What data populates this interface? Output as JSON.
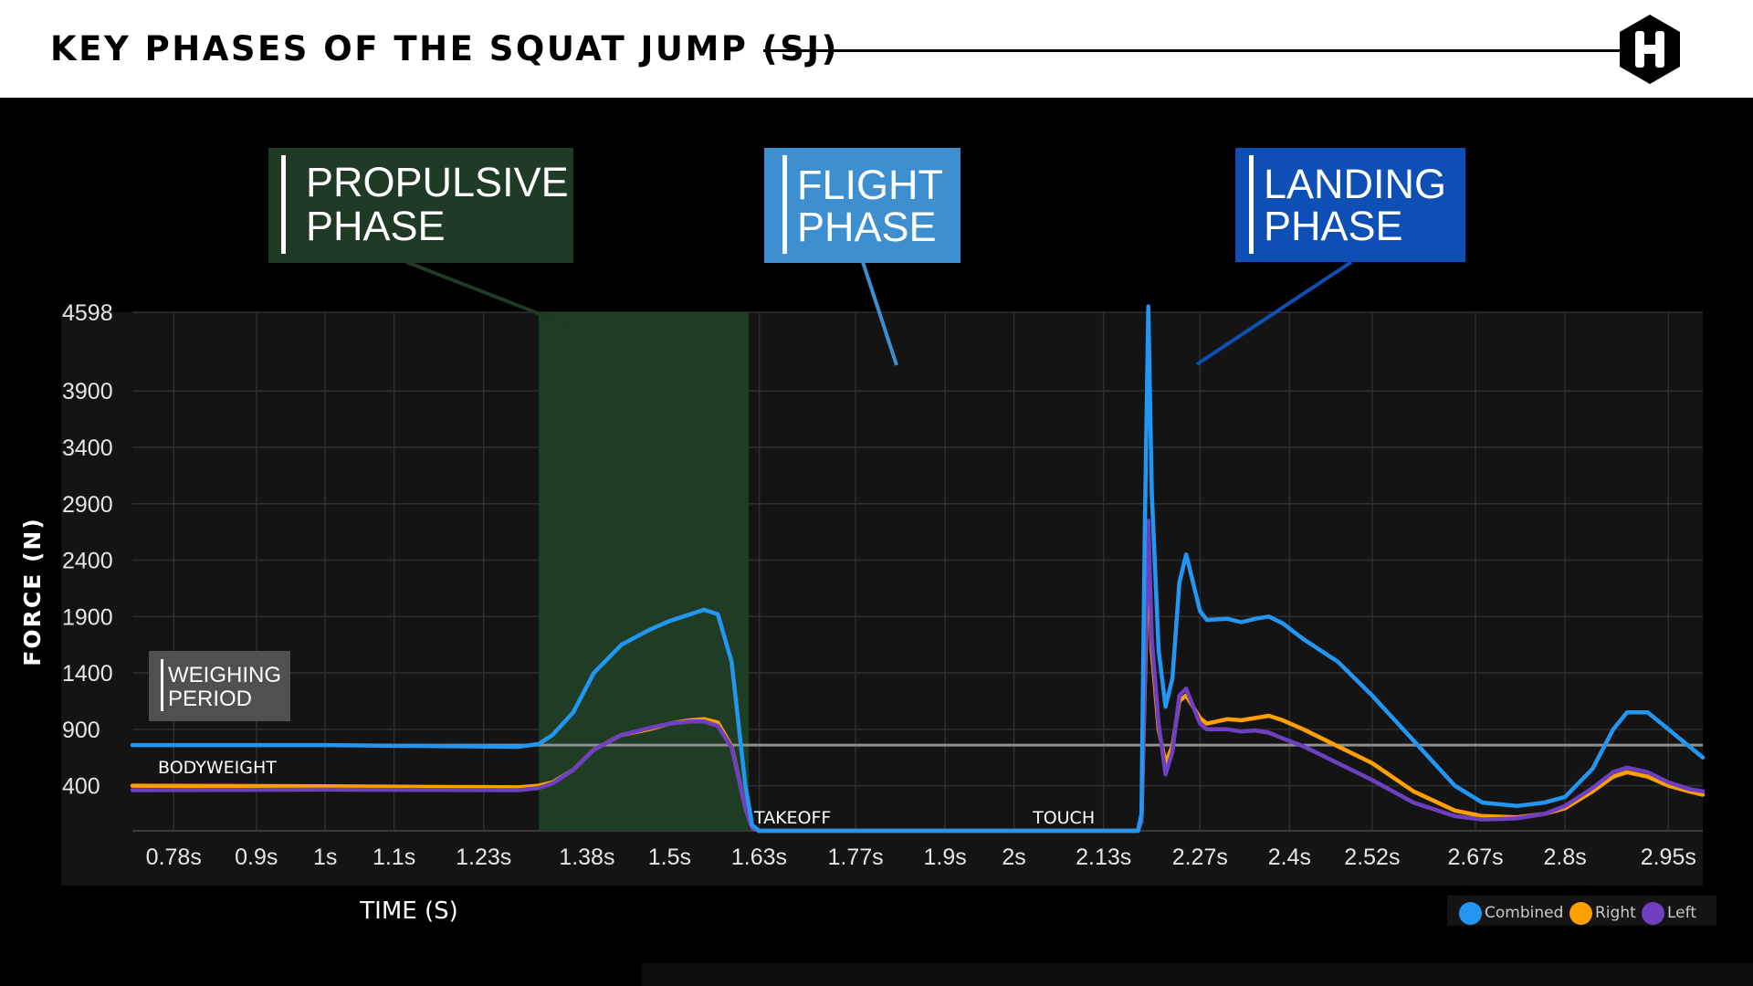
{
  "header": {
    "title": "KEY PHASES OF THE SQUAT JUMP (SJ)"
  },
  "colors": {
    "combined": "#2196f3",
    "right": "#ffa000",
    "left": "#6f3fc2",
    "propulsive": "#1f3d24",
    "propulsive_box": "#1f3a25",
    "flight_box": "#3d8fd0",
    "landing_box": "#0d4fb5",
    "bodyweight_line": "#8f8f8f",
    "plot_bg": "#141414"
  },
  "chart_data": {
    "type": "line",
    "xlabel": "TIME (S)",
    "ylabel": "FORCE (N)",
    "xlim": [
      0.72,
      3.0
    ],
    "ylim": [
      0,
      4598
    ],
    "grid": true,
    "x_ticks": [
      0.78,
      0.9,
      1.0,
      1.1,
      1.23,
      1.38,
      1.5,
      1.63,
      1.77,
      1.9,
      2.0,
      2.13,
      2.27,
      2.4,
      2.52,
      2.67,
      2.8,
      2.95
    ],
    "x_tick_labels": [
      "0.78s",
      "0.9s",
      "1s",
      "1.1s",
      "1.23s",
      "1.38s",
      "1.5s",
      "1.63s",
      "1.77s",
      "1.9s",
      "2s",
      "2.13s",
      "2.27s",
      "2.4s",
      "2.52s",
      "2.67s",
      "2.8s",
      "2.95s"
    ],
    "y_ticks": [
      400,
      900,
      1400,
      1900,
      2400,
      2900,
      3400,
      3900,
      4598
    ],
    "y_tick_labels": [
      "400",
      "900",
      "1400",
      "1900",
      "2400",
      "2900",
      "3400",
      "3900",
      "4598"
    ],
    "legend": [
      "Combined",
      "Right",
      "Left"
    ],
    "legend_position": "bottom-right",
    "bodyweight": 760,
    "bodyweight_label": "BODYWEIGHT",
    "propulsive_range": [
      1.31,
      1.615
    ],
    "takeoff_label": "TAKEOFF",
    "takeoff_x": 1.62,
    "touch_label": "TOUCH",
    "touch_x": 2.12,
    "weighing_label": [
      "WEIGHING",
      "PERIOD"
    ],
    "phases": [
      {
        "lines": [
          "PROPULSIVE",
          "PHASE"
        ]
      },
      {
        "lines": [
          "FLIGHT",
          "PHASE"
        ]
      },
      {
        "lines": [
          "LANDING",
          "PHASE"
        ]
      }
    ],
    "series": [
      {
        "name": "Combined",
        "x": [
          0.72,
          1.0,
          1.28,
          1.31,
          1.33,
          1.36,
          1.39,
          1.43,
          1.47,
          1.5,
          1.53,
          1.55,
          1.57,
          1.59,
          1.61,
          1.62,
          1.63,
          2.0,
          2.18,
          2.185,
          2.19,
          2.195,
          2.2,
          2.21,
          2.22,
          2.23,
          2.24,
          2.25,
          2.27,
          2.28,
          2.31,
          2.33,
          2.35,
          2.37,
          2.39,
          2.42,
          2.47,
          2.52,
          2.58,
          2.64,
          2.68,
          2.73,
          2.77,
          2.8,
          2.84,
          2.87,
          2.89,
          2.92,
          2.95,
          2.98,
          3.0
        ],
        "y": [
          760,
          760,
          745,
          770,
          850,
          1050,
          1400,
          1650,
          1780,
          1860,
          1920,
          1960,
          1920,
          1500,
          400,
          50,
          0,
          0,
          0,
          150,
          2700,
          4650,
          3000,
          1600,
          1100,
          1350,
          2200,
          2450,
          1950,
          1870,
          1880,
          1850,
          1880,
          1900,
          1840,
          1700,
          1500,
          1200,
          800,
          400,
          250,
          220,
          250,
          300,
          550,
          900,
          1050,
          1050,
          900,
          750,
          650
        ]
      },
      {
        "name": "Right",
        "x": [
          0.72,
          1.0,
          1.28,
          1.31,
          1.33,
          1.36,
          1.39,
          1.43,
          1.47,
          1.5,
          1.53,
          1.55,
          1.57,
          1.59,
          1.61,
          1.62,
          1.63,
          2.0,
          2.18,
          2.185,
          2.19,
          2.195,
          2.2,
          2.21,
          2.22,
          2.23,
          2.24,
          2.25,
          2.27,
          2.28,
          2.31,
          2.33,
          2.35,
          2.37,
          2.39,
          2.42,
          2.47,
          2.52,
          2.58,
          2.64,
          2.68,
          2.73,
          2.77,
          2.8,
          2.84,
          2.87,
          2.89,
          2.92,
          2.95,
          2.98,
          3.0
        ],
        "y": [
          400,
          395,
          385,
          400,
          430,
          540,
          720,
          850,
          900,
          950,
          980,
          990,
          960,
          750,
          200,
          25,
          0,
          0,
          0,
          80,
          1300,
          2500,
          1600,
          900,
          600,
          750,
          1150,
          1200,
          1000,
          950,
          990,
          980,
          1000,
          1020,
          980,
          900,
          750,
          600,
          350,
          180,
          130,
          120,
          150,
          200,
          350,
          480,
          520,
          480,
          400,
          350,
          320
        ]
      },
      {
        "name": "Left",
        "x": [
          0.72,
          1.0,
          1.28,
          1.31,
          1.33,
          1.36,
          1.39,
          1.43,
          1.47,
          1.5,
          1.53,
          1.55,
          1.57,
          1.59,
          1.61,
          1.62,
          1.63,
          2.0,
          2.18,
          2.185,
          2.19,
          2.195,
          2.2,
          2.21,
          2.22,
          2.23,
          2.24,
          2.25,
          2.27,
          2.28,
          2.31,
          2.33,
          2.35,
          2.37,
          2.39,
          2.42,
          2.47,
          2.52,
          2.58,
          2.64,
          2.68,
          2.73,
          2.77,
          2.8,
          2.84,
          2.87,
          2.89,
          2.92,
          2.95,
          2.98,
          3.0
        ],
        "y": [
          360,
          365,
          360,
          380,
          420,
          540,
          720,
          850,
          910,
          950,
          970,
          970,
          930,
          740,
          200,
          25,
          0,
          0,
          0,
          80,
          1400,
          2750,
          1700,
          950,
          500,
          700,
          1200,
          1260,
          950,
          900,
          900,
          880,
          890,
          870,
          820,
          750,
          600,
          450,
          250,
          130,
          100,
          110,
          150,
          220,
          380,
          520,
          560,
          520,
          430,
          370,
          350
        ]
      }
    ]
  }
}
